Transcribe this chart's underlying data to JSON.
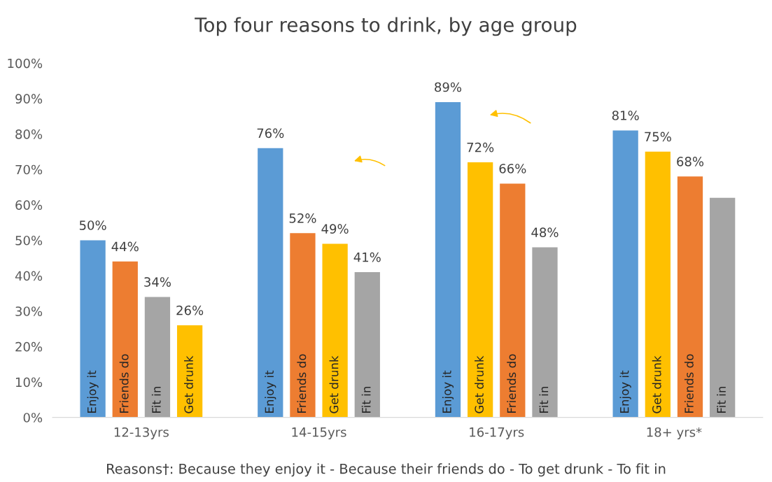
{
  "chart_data": {
    "type": "bar",
    "title": "Top four reasons to drink, by age group",
    "categories": [
      "12-13yrs",
      "14-15yrs",
      "16-17yrs",
      "18+ yrs*"
    ],
    "series": [
      {
        "colors": [
          "#5b9bd5",
          "#5b9bd5",
          "#5b9bd5",
          "#5b9bd5"
        ],
        "values": [
          50,
          76,
          89,
          81
        ],
        "value_labels": [
          "50%",
          "76%",
          "89%",
          "81%"
        ]
      },
      {
        "colors": [
          "#ed7d31",
          "#ed7d31",
          "#ffc000",
          "#ffc000"
        ],
        "values": [
          44,
          52,
          72,
          75
        ],
        "value_labels": [
          "44%",
          "52%",
          "72%",
          "75%"
        ]
      },
      {
        "colors": [
          "#a5a5a5",
          "#ffc000",
          "#ed7d31",
          "#ed7d31"
        ],
        "values": [
          34,
          49,
          66,
          68
        ],
        "value_labels": [
          "34%",
          "49%",
          "66%",
          "68%"
        ]
      },
      {
        "colors": [
          "#ffc000",
          "#a5a5a5",
          "#a5a5a5",
          "#a5a5a5"
        ],
        "values": [
          26,
          41,
          48,
          62
        ],
        "value_labels": [
          "26%",
          "41%",
          "48%",
          null
        ]
      }
    ],
    "ylim": [
      0,
      100
    ],
    "yticks": [
      {
        "value": 0,
        "label": "0%"
      },
      {
        "value": 10,
        "label": "10%"
      },
      {
        "value": 20,
        "label": "20%"
      },
      {
        "value": 30,
        "label": "30%"
      },
      {
        "value": 40,
        "label": "40%"
      },
      {
        "value": 50,
        "label": "50%"
      },
      {
        "value": 60,
        "label": "60%"
      },
      {
        "value": 70,
        "label": "70%"
      },
      {
        "value": 80,
        "label": "80%"
      },
      {
        "value": 90,
        "label": "90%"
      },
      {
        "value": 100,
        "label": "100%"
      }
    ],
    "grid": false,
    "legend": false,
    "annotations": [
      "Enjoy it",
      "Friends do",
      "Fit in",
      "Get drunk",
      "Enjoy it",
      "Friends do",
      "Get drunk",
      "Fit in",
      "Enjoy it",
      "Get drunk",
      "Friends do",
      "Fit in",
      "Enjoy it",
      "Get drunk",
      "Friends do",
      "Fit in",
      "Reasons†: Because they enjoy it - Because their friends do - To get drunk - To fit in"
    ]
  }
}
